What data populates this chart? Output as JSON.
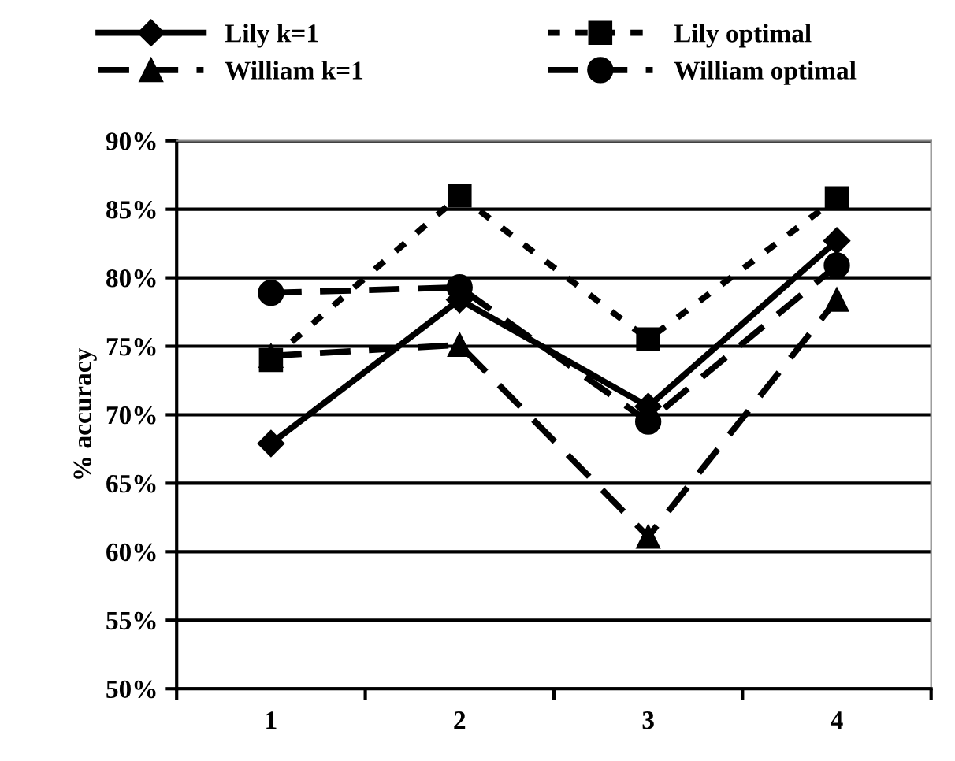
{
  "chart_data": {
    "type": "line",
    "ylabel": "% accuracy",
    "categories": [
      "1",
      "2",
      "3",
      "4"
    ],
    "series": [
      {
        "name": "Lily k=1",
        "color": "#000000",
        "marker": "diamond",
        "line_style": "solid",
        "values": [
          0.679,
          0.784,
          0.706,
          0.827
        ]
      },
      {
        "name": "Lily optimal",
        "color": "#000000",
        "marker": "square",
        "line_style": "dotted",
        "values": [
          0.74,
          0.86,
          0.755,
          0.858
        ]
      },
      {
        "name": "William k=1",
        "color": "#000000",
        "marker": "triangle",
        "line_style": "dashed",
        "values": [
          0.743,
          0.751,
          0.611,
          0.784
        ]
      },
      {
        "name": "William optimal",
        "color": "#000000",
        "marker": "circle",
        "line_style": "dashed",
        "values": [
          0.789,
          0.793,
          0.695,
          0.809
        ]
      }
    ],
    "ylim": [
      0.5,
      0.9
    ],
    "yticks": [
      {
        "value": 0.5,
        "label": "50%"
      },
      {
        "value": 0.55,
        "label": "55%"
      },
      {
        "value": 0.6,
        "label": "60%"
      },
      {
        "value": 0.65,
        "label": "65%"
      },
      {
        "value": 0.7,
        "label": "70%"
      },
      {
        "value": 0.75,
        "label": "75%"
      },
      {
        "value": 0.8,
        "label": "80%"
      },
      {
        "value": 0.85,
        "label": "85%"
      },
      {
        "value": 0.9,
        "label": "90%"
      }
    ],
    "grid": "y",
    "legend": "top"
  }
}
